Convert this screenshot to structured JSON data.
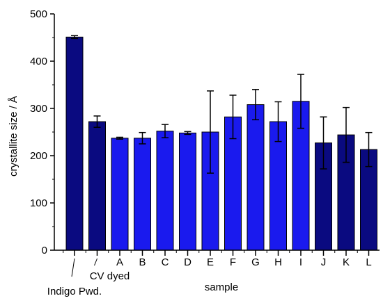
{
  "chart_data": {
    "type": "bar",
    "xlabel": "sample",
    "ylabel": "crystallite size / Å",
    "ylim": [
      0,
      500
    ],
    "yticks": [
      0,
      100,
      200,
      300,
      400,
      500
    ],
    "grid": false,
    "legend": "none",
    "categories": [
      "Indigo Pwd.",
      "CV dyed",
      "A",
      "B",
      "C",
      "D",
      "E",
      "F",
      "G",
      "H",
      "I",
      "J",
      "K",
      "L"
    ],
    "values": [
      451,
      272,
      237,
      237,
      252,
      248,
      250,
      282,
      308,
      272,
      315,
      227,
      244,
      213
    ],
    "errors": [
      3,
      12,
      2,
      12,
      14,
      3,
      87,
      46,
      32,
      42,
      57,
      55,
      58,
      36
    ],
    "bar_colors": [
      "#0a0a80",
      "#0a0a80",
      "#1a1aee",
      "#1a1aee",
      "#1a1aee",
      "#1a1aee",
      "#1a1aee",
      "#1a1aee",
      "#1a1aee",
      "#1a1aee",
      "#1a1aee",
      "#0a0a80",
      "#0a0a80",
      "#0a0a80"
    ]
  }
}
